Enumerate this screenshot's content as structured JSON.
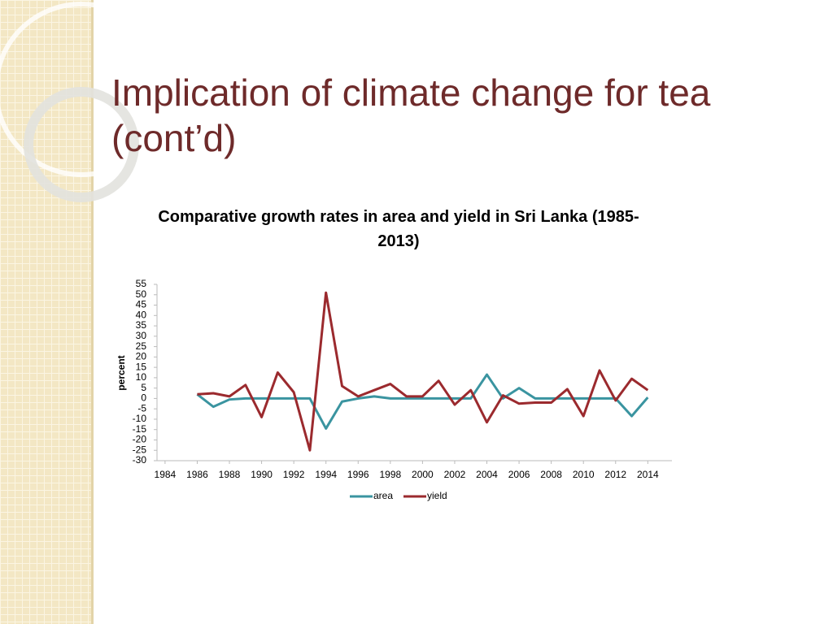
{
  "slide_title": "Implication of climate change for tea (cont’d)",
  "chart_data": {
    "type": "line",
    "title": "Comparative growth rates in area and yield in Sri Lanka (1985-2013)",
    "y_label": "percent",
    "x": [
      1986,
      1987,
      1988,
      1989,
      1990,
      1991,
      1992,
      1993,
      1994,
      1995,
      1996,
      1997,
      1998,
      1999,
      2000,
      2001,
      2002,
      2003,
      2004,
      2005,
      2006,
      2007,
      2008,
      2009,
      2010,
      2011,
      2012,
      2013,
      2014
    ],
    "series": [
      {
        "name": "area",
        "color": "#3a94a0",
        "values": [
          2,
          -4,
          -0.5,
          0,
          0,
          0,
          0,
          0,
          -14.5,
          -1.5,
          0,
          1,
          0,
          0,
          0,
          0,
          0,
          0,
          11.5,
          0,
          5,
          0,
          0,
          0,
          0,
          0,
          0,
          -8.5,
          0.5
        ]
      },
      {
        "name": "yield",
        "color": "#9b2a2e",
        "values": [
          2,
          2.5,
          1,
          6.5,
          -9,
          12.5,
          3,
          -25,
          51,
          6,
          1,
          4,
          7,
          1,
          1,
          8.5,
          -3,
          4,
          -11.5,
          1.5,
          -2.5,
          -2,
          -2,
          4.5,
          -8.5,
          13.5,
          -1,
          9.5,
          4
        ]
      }
    ],
    "xlim": [
      1983.5,
      2015.5
    ],
    "xticks": [
      1984,
      1986,
      1988,
      1990,
      1992,
      1994,
      1996,
      1998,
      2000,
      2002,
      2004,
      2006,
      2008,
      2010,
      2012,
      2014
    ],
    "ylim": [
      -30,
      55
    ],
    "yticks": [
      -30,
      -25,
      -20,
      -15,
      -10,
      -5,
      0,
      5,
      10,
      15,
      20,
      25,
      30,
      35,
      40,
      45,
      50,
      55
    ],
    "grid": false,
    "legend": "bottom"
  }
}
